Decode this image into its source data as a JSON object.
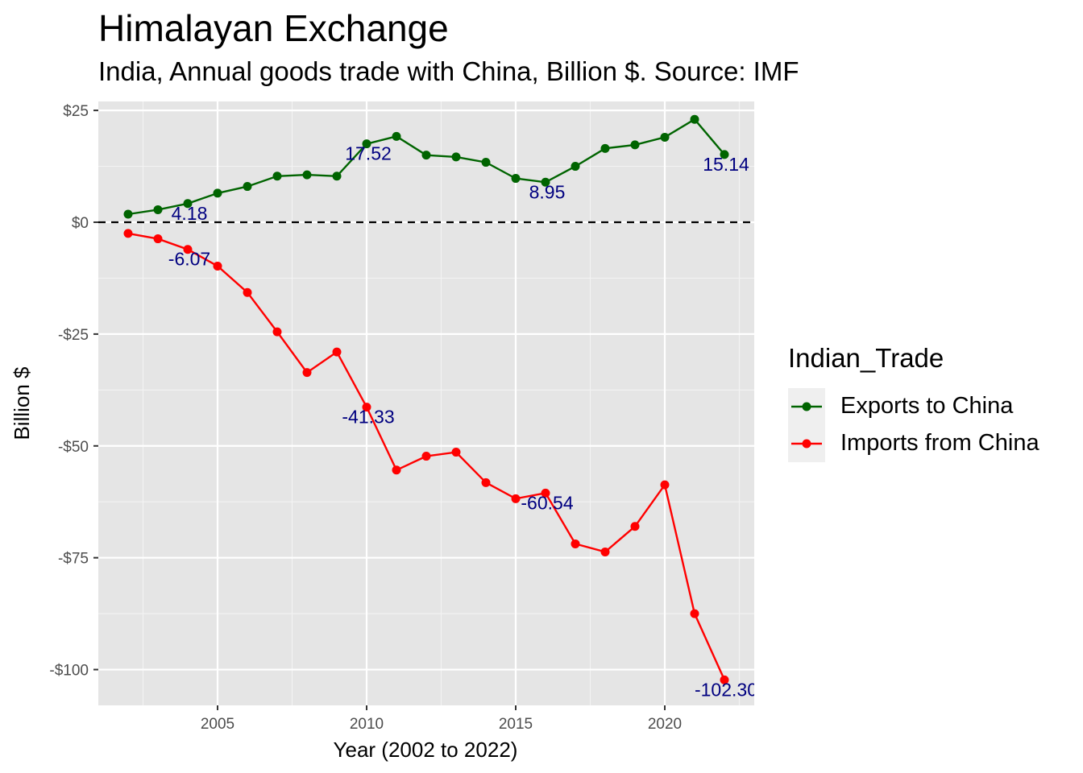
{
  "title": "Himalayan Exchange",
  "subtitle": "India, Annual goods trade with China, Billion $. Source: IMF",
  "chart_data": {
    "type": "line",
    "title": "Himalayan Exchange",
    "subtitle": "India, Annual goods trade with China, Billion $. Source: IMF",
    "xlabel": "Year (2002 to 2022)",
    "ylabel": "Billion $",
    "x": [
      2002,
      2003,
      2004,
      2005,
      2006,
      2007,
      2008,
      2009,
      2010,
      2011,
      2012,
      2013,
      2014,
      2015,
      2016,
      2017,
      2018,
      2019,
      2020,
      2021,
      2022
    ],
    "xlim": [
      2001.0,
      2023.0
    ],
    "ylim": [
      -108,
      27
    ],
    "x_ticks": [
      2005,
      2010,
      2015,
      2020
    ],
    "x_tick_labels": [
      "2005",
      "2010",
      "2015",
      "2020"
    ],
    "y_ticks": [
      25,
      0,
      -25,
      -50,
      -75,
      -100
    ],
    "y_tick_labels": [
      "$25",
      "$0",
      "-$25",
      "-$50",
      "-$75",
      "-$100"
    ],
    "reference_line": {
      "y": 0,
      "style": "dashed",
      "color": "#000000"
    },
    "grid": true,
    "legend": {
      "title": "Indian_Trade",
      "position": "right"
    },
    "series": [
      {
        "name": "Exports to China",
        "color": "#006400",
        "values": [
          1.8,
          2.8,
          4.18,
          6.5,
          8.0,
          10.3,
          10.6,
          10.3,
          17.52,
          19.2,
          15.0,
          14.6,
          13.4,
          9.8,
          8.95,
          12.5,
          16.5,
          17.3,
          19.0,
          23.0,
          15.14
        ]
      },
      {
        "name": "Imports from China",
        "color": "#ff0000",
        "values": [
          -2.5,
          -3.7,
          -6.07,
          -9.8,
          -15.7,
          -24.5,
          -33.6,
          -29.0,
          -41.33,
          -55.4,
          -52.3,
          -51.4,
          -58.2,
          -61.8,
          -60.54,
          -71.9,
          -73.7,
          -68.0,
          -58.7,
          -87.5,
          -102.3
        ]
      }
    ],
    "data_labels": [
      {
        "series": 0,
        "x": 2004,
        "text": "4.18"
      },
      {
        "series": 0,
        "x": 2010,
        "text": "17.52"
      },
      {
        "series": 0,
        "x": 2016,
        "text": "8.95"
      },
      {
        "series": 0,
        "x": 2022,
        "text": "15.14"
      },
      {
        "series": 1,
        "x": 2004,
        "text": "-6.07"
      },
      {
        "series": 1,
        "x": 2010,
        "text": "-41.33"
      },
      {
        "series": 1,
        "x": 2016,
        "text": "-60.54"
      },
      {
        "series": 1,
        "x": 2022,
        "text": "-102.30"
      }
    ],
    "label_color": "#000080"
  }
}
